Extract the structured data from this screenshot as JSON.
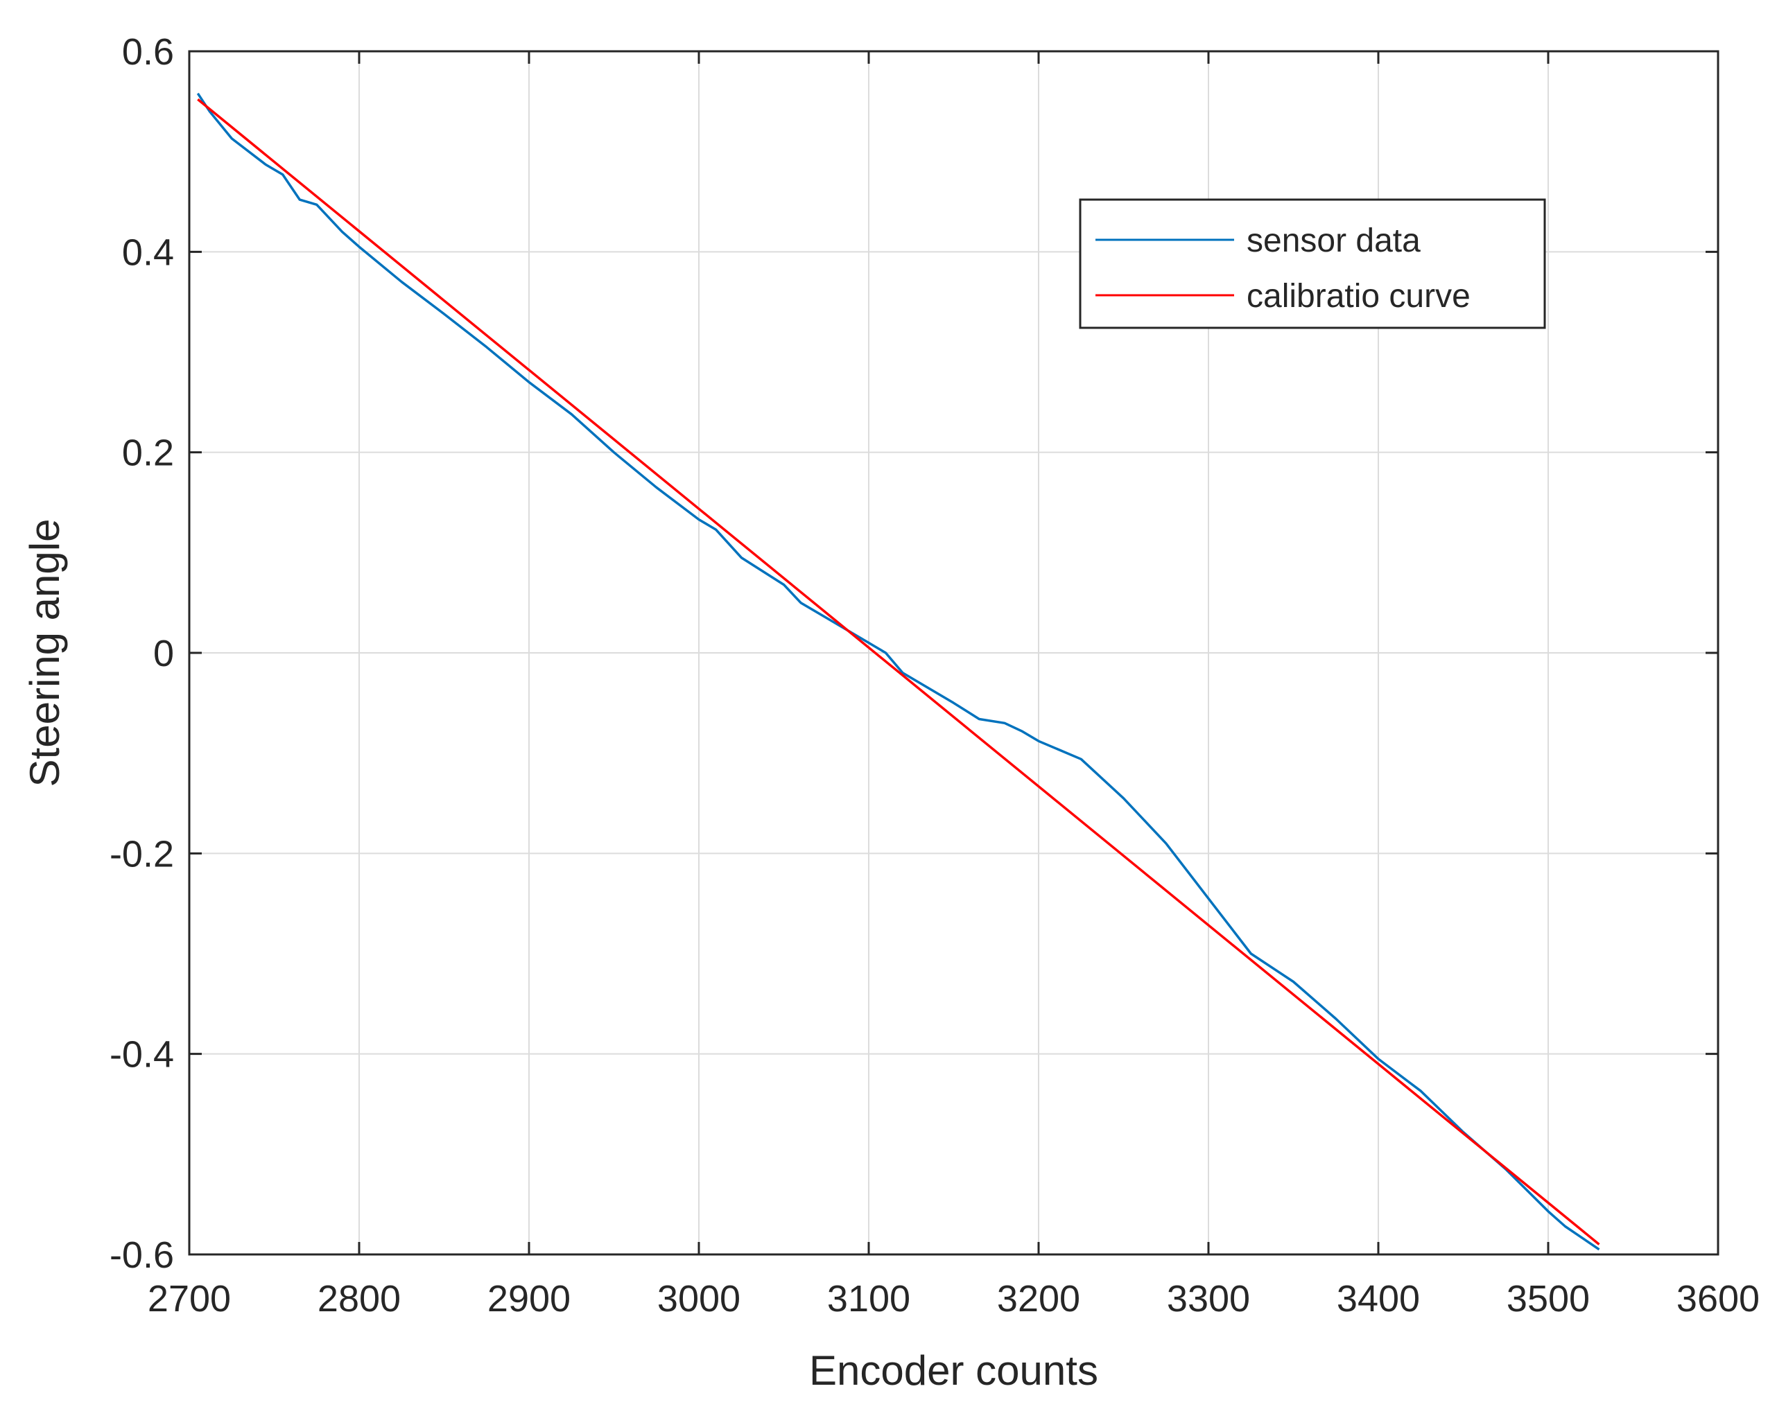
{
  "chart_data": {
    "type": "line",
    "title": "",
    "xlabel": "Encoder counts",
    "ylabel": "Steering angle",
    "xlim": [
      2700,
      3600
    ],
    "ylim": [
      -0.6,
      0.6
    ],
    "xticks": [
      2700,
      2800,
      2900,
      3000,
      3100,
      3200,
      3300,
      3400,
      3500,
      3600
    ],
    "xtick_labels": [
      "2700",
      "2800",
      "2900",
      "3000",
      "3100",
      "3200",
      "3300",
      "3400",
      "3500",
      "3600"
    ],
    "yticks": [
      -0.6,
      -0.4,
      -0.2,
      0,
      0.2,
      0.4,
      0.6
    ],
    "ytick_labels": [
      "-0.6",
      "-0.4",
      "-0.2",
      "0",
      "0.2",
      "0.4",
      "0.6"
    ],
    "grid": true,
    "legend_position": "top-right",
    "series": [
      {
        "name": "sensor data",
        "color": "#0072BD",
        "x": [
          2705,
          2712,
          2725,
          2745,
          2755,
          2765,
          2775,
          2790,
          2800,
          2825,
          2850,
          2875,
          2900,
          2925,
          2950,
          2975,
          3000,
          3010,
          3025,
          3050,
          3060,
          3075,
          3100,
          3110,
          3120,
          3150,
          3165,
          3180,
          3190,
          3200,
          3225,
          3250,
          3275,
          3300,
          3325,
          3350,
          3375,
          3400,
          3425,
          3450,
          3475,
          3500,
          3510,
          3530
        ],
        "y": [
          0.558,
          0.54,
          0.513,
          0.487,
          0.477,
          0.452,
          0.447,
          0.42,
          0.405,
          0.37,
          0.338,
          0.305,
          0.27,
          0.238,
          0.2,
          0.165,
          0.133,
          0.123,
          0.095,
          0.068,
          0.05,
          0.035,
          0.01,
          0.0,
          -0.02,
          -0.05,
          -0.066,
          -0.07,
          -0.078,
          -0.088,
          -0.106,
          -0.145,
          -0.19,
          -0.245,
          -0.3,
          -0.328,
          -0.365,
          -0.405,
          -0.437,
          -0.478,
          -0.515,
          -0.557,
          -0.572,
          -0.595
        ]
      },
      {
        "name": "calibratio curve",
        "color": "#FF0000",
        "x": [
          2705,
          3530
        ],
        "y": [
          0.552,
          -0.59
        ]
      }
    ]
  }
}
